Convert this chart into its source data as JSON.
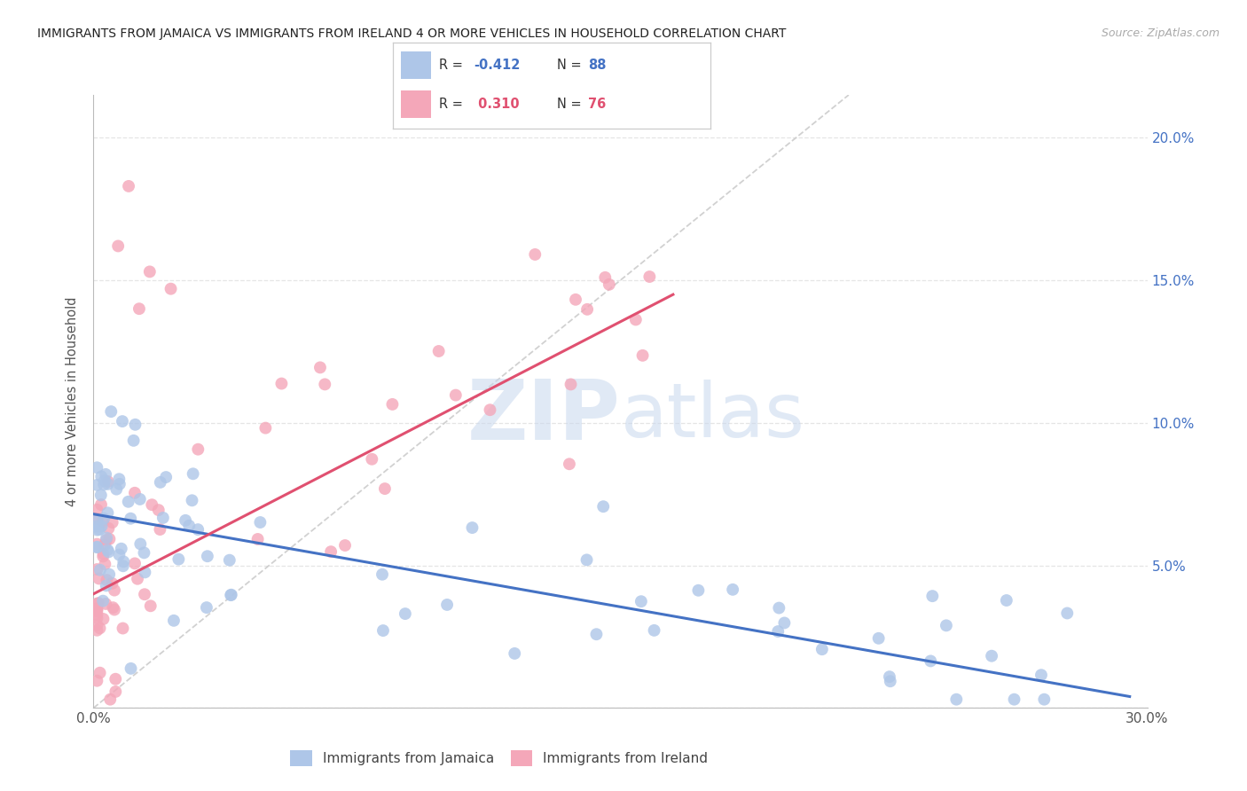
{
  "title": "IMMIGRANTS FROM JAMAICA VS IMMIGRANTS FROM IRELAND 4 OR MORE VEHICLES IN HOUSEHOLD CORRELATION CHART",
  "source": "Source: ZipAtlas.com",
  "ylabel": "4 or more Vehicles in Household",
  "xlim": [
    0.0,
    0.3
  ],
  "ylim": [
    0.0,
    0.215
  ],
  "jamaica_line_color": "#4472c4",
  "ireland_line_color": "#e05070",
  "jamaica_dot_color": "#aec6e8",
  "ireland_dot_color": "#f4a7b9",
  "diagonal_color": "#cccccc",
  "background_color": "#ffffff",
  "grid_color": "#e5e5e5",
  "jamaica_R": "-0.412",
  "jamaica_N": "88",
  "ireland_R": "0.310",
  "ireland_N": "76",
  "jamaica_label": "Immigrants from Jamaica",
  "ireland_label": "Immigrants from Ireland",
  "jamaica_trend_x": [
    0.0,
    0.295
  ],
  "jamaica_trend_y": [
    0.068,
    0.004
  ],
  "ireland_trend_x": [
    0.0,
    0.165
  ],
  "ireland_trend_y": [
    0.04,
    0.145
  ],
  "watermark_zip": "ZIP",
  "watermark_atlas": "atlas"
}
